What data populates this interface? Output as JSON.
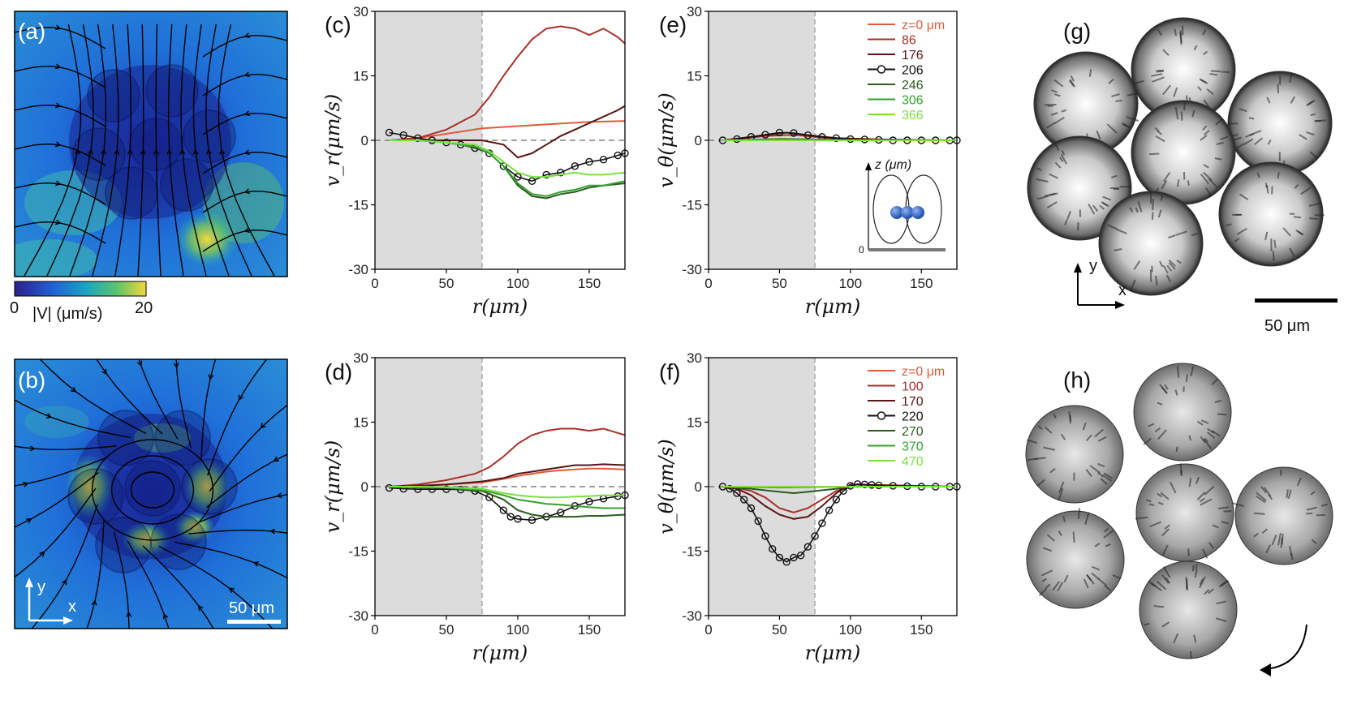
{
  "panel_labels": {
    "a": "(a)",
    "b": "(b)",
    "c": "(c)",
    "d": "(d)",
    "e": "(e)",
    "f": "(f)",
    "g": "(g)",
    "h": "(h)"
  },
  "colorbar": {
    "min": "0",
    "max": "20",
    "label": "|V| (μm/s)",
    "colors": [
      "#2e1f8c",
      "#1f63d8",
      "#18a6c0",
      "#5ec46a",
      "#f3d83a"
    ]
  },
  "scalebars": {
    "b": "50 μm",
    "g": "50 μm"
  },
  "axes_glyphs": {
    "x": "x",
    "y": "y"
  },
  "inset": {
    "label": "z (μm)",
    "zero": "0"
  },
  "chart_data": [
    {
      "id": "c",
      "type": "line",
      "xlabel": "r(μm)",
      "ylabel": "v_r(μm/s)",
      "xlim": [
        0,
        175
      ],
      "ylim": [
        -30,
        30
      ],
      "xticks": [
        "0",
        "50",
        "100",
        "150"
      ],
      "yticks": [
        "30",
        "15",
        "0",
        "-15",
        "-30"
      ],
      "shade_until": 75,
      "series": [
        {
          "name": "z=0 μm",
          "color": "#e25a3a",
          "marker": false,
          "x": [
            10,
            30,
            50,
            75,
            100,
            125,
            150,
            175
          ],
          "y": [
            0,
            0.5,
            1.5,
            2.8,
            3.3,
            3.8,
            4.3,
            4.5
          ]
        },
        {
          "name": "86",
          "color": "#a8302a",
          "marker": false,
          "x": [
            10,
            30,
            50,
            70,
            80,
            90,
            100,
            110,
            120,
            130,
            140,
            150,
            160,
            170,
            175
          ],
          "y": [
            0,
            0.5,
            2.5,
            6,
            10,
            15,
            19.5,
            23.5,
            26,
            26.5,
            26,
            24.5,
            26,
            24,
            22.5
          ]
        },
        {
          "name": "176",
          "color": "#5a1414",
          "marker": false,
          "x": [
            10,
            30,
            50,
            75,
            90,
            100,
            110,
            120,
            130,
            140,
            150,
            160,
            170,
            175
          ],
          "y": [
            0,
            0,
            0,
            0,
            -1,
            -4,
            -3,
            -1,
            1,
            2.5,
            4,
            5.5,
            7,
            8
          ]
        },
        {
          "name": "206",
          "color": "#111111",
          "marker": true,
          "x": [
            10,
            20,
            30,
            40,
            50,
            60,
            70,
            80,
            90,
            100,
            110,
            120,
            130,
            140,
            150,
            160,
            170,
            175
          ],
          "y": [
            1.8,
            1.2,
            0.5,
            0,
            -0.5,
            -1,
            -1.8,
            -3,
            -6,
            -8.5,
            -9.5,
            -8,
            -7.5,
            -6,
            -5,
            -4.5,
            -3.5,
            -3
          ]
        },
        {
          "name": "246",
          "color": "#2d5a1f",
          "marker": false,
          "x": [
            10,
            30,
            50,
            70,
            80,
            90,
            100,
            110,
            120,
            130,
            140,
            150,
            160,
            175
          ],
          "y": [
            0,
            0,
            -0.5,
            -1.5,
            -3,
            -6,
            -10.5,
            -13,
            -13.5,
            -12.5,
            -12,
            -11,
            -10.5,
            -10
          ]
        },
        {
          "name": "306",
          "color": "#36a02e",
          "marker": false,
          "x": [
            10,
            30,
            50,
            70,
            80,
            90,
            100,
            110,
            120,
            130,
            140,
            150,
            160,
            175
          ],
          "y": [
            0,
            0,
            -0.5,
            -1.5,
            -3,
            -6,
            -10,
            -12.5,
            -13,
            -12,
            -11.5,
            -10.5,
            -10.5,
            -9.5
          ]
        },
        {
          "name": "366",
          "color": "#7ae043",
          "marker": false,
          "x": [
            10,
            30,
            50,
            70,
            80,
            90,
            100,
            110,
            120,
            130,
            140,
            150,
            160,
            175
          ],
          "y": [
            0,
            0,
            -0.5,
            -1,
            -2.5,
            -5,
            -7.5,
            -8.5,
            -8.5,
            -8,
            -7.5,
            -8,
            -8,
            -7.5
          ]
        }
      ]
    },
    {
      "id": "d",
      "type": "line",
      "xlabel": "r(μm)",
      "ylabel": "v_r(μm/s)",
      "xlim": [
        0,
        175
      ],
      "ylim": [
        -30,
        30
      ],
      "xticks": [
        "0",
        "50",
        "100",
        "150"
      ],
      "yticks": [
        "30",
        "15",
        "0",
        "-15",
        "-30"
      ],
      "shade_until": 75,
      "series": [
        {
          "name": "z=0 μm",
          "color": "#e25a3a",
          "marker": false,
          "x": [
            10,
            30,
            50,
            75,
            90,
            100,
            110,
            120,
            130,
            140,
            150,
            160,
            175
          ],
          "y": [
            0,
            0.2,
            0.5,
            1,
            1.8,
            2.5,
            3,
            3.5,
            3.8,
            4,
            4.2,
            4.2,
            4
          ]
        },
        {
          "name": "100",
          "color": "#a8302a",
          "marker": false,
          "x": [
            10,
            30,
            50,
            70,
            80,
            90,
            100,
            110,
            120,
            130,
            140,
            150,
            160,
            170,
            175
          ],
          "y": [
            0,
            0.5,
            1.5,
            3,
            4.5,
            7,
            10,
            12,
            13,
            13.5,
            13.5,
            13,
            13.5,
            12.5,
            12
          ]
        },
        {
          "name": "170",
          "color": "#5a1414",
          "marker": false,
          "x": [
            10,
            30,
            50,
            75,
            90,
            100,
            110,
            120,
            130,
            140,
            150,
            160,
            175
          ],
          "y": [
            0,
            0.2,
            0.5,
            1.2,
            2,
            3,
            3.5,
            4,
            4.5,
            5,
            5,
            5.2,
            5
          ]
        },
        {
          "name": "220",
          "color": "#111111",
          "marker": true,
          "x": [
            10,
            20,
            30,
            40,
            50,
            60,
            70,
            80,
            90,
            95,
            100,
            110,
            120,
            130,
            140,
            150,
            160,
            170,
            175
          ],
          "y": [
            -0.3,
            -0.5,
            -0.6,
            -0.6,
            -0.6,
            -0.7,
            -1,
            -2.5,
            -5.5,
            -7,
            -7.5,
            -7.8,
            -7,
            -6,
            -4.5,
            -3.5,
            -2.8,
            -2.2,
            -2
          ]
        },
        {
          "name": "270",
          "color": "#2d5a1f",
          "marker": false,
          "x": [
            10,
            30,
            50,
            75,
            90,
            100,
            110,
            120,
            130,
            140,
            150,
            160,
            175
          ],
          "y": [
            0,
            -0.2,
            -0.3,
            -1,
            -3,
            -5.5,
            -6.5,
            -7,
            -7,
            -7,
            -6.8,
            -6.8,
            -6.5
          ]
        },
        {
          "name": "370",
          "color": "#36a02e",
          "marker": false,
          "x": [
            10,
            30,
            50,
            75,
            90,
            100,
            110,
            120,
            130,
            140,
            150,
            160,
            175
          ],
          "y": [
            0,
            -0.1,
            -0.2,
            -0.8,
            -2,
            -3,
            -3.5,
            -4,
            -4.2,
            -4.5,
            -4.8,
            -5,
            -5
          ]
        },
        {
          "name": "470",
          "color": "#7ae043",
          "marker": false,
          "x": [
            10,
            30,
            50,
            75,
            90,
            100,
            110,
            120,
            130,
            140,
            150,
            160,
            175
          ],
          "y": [
            0,
            0,
            -0.1,
            -0.5,
            -1.5,
            -2,
            -2.3,
            -2.5,
            -2.5,
            -2.3,
            -2.2,
            -2,
            -2
          ]
        }
      ]
    },
    {
      "id": "e",
      "type": "line",
      "xlabel": "r(μm)",
      "ylabel": "v_θ(μm/s)",
      "xlim": [
        0,
        175
      ],
      "ylim": [
        -30,
        30
      ],
      "xticks": [
        "0",
        "50",
        "100",
        "150"
      ],
      "yticks": [
        "30",
        "15",
        "0",
        "-15",
        "-30"
      ],
      "shade_until": 75,
      "legend": [
        "z=0 μm",
        "86",
        "176",
        "206",
        "246",
        "306",
        "366"
      ],
      "series": [
        {
          "name": "z=0 μm",
          "color": "#e25a3a",
          "marker": false,
          "x": [
            10,
            50,
            100,
            175
          ],
          "y": [
            0,
            0,
            0,
            0
          ]
        },
        {
          "name": "86",
          "color": "#a8302a",
          "marker": false,
          "x": [
            10,
            40,
            60,
            80,
            100,
            175
          ],
          "y": [
            0,
            1,
            1.3,
            0.6,
            0.2,
            0
          ]
        },
        {
          "name": "176",
          "color": "#5a1414",
          "marker": false,
          "x": [
            10,
            40,
            55,
            70,
            90,
            120,
            175
          ],
          "y": [
            0,
            1.2,
            1.8,
            1.2,
            0.5,
            0.2,
            0
          ]
        },
        {
          "name": "206",
          "color": "#111111",
          "marker": true,
          "x": [
            10,
            20,
            30,
            40,
            50,
            60,
            70,
            80,
            90,
            100,
            110,
            120,
            130,
            140,
            150,
            160,
            170,
            175
          ],
          "y": [
            0,
            0.3,
            0.8,
            1.3,
            1.8,
            1.7,
            1.2,
            0.8,
            0.5,
            0.3,
            0.2,
            0.1,
            0,
            0,
            0,
            0,
            0,
            0
          ]
        },
        {
          "name": "246",
          "color": "#2d5a1f",
          "marker": false,
          "x": [
            10,
            50,
            100,
            175
          ],
          "y": [
            0,
            0.3,
            0.1,
            0
          ]
        },
        {
          "name": "306",
          "color": "#36a02e",
          "marker": false,
          "x": [
            10,
            50,
            100,
            175
          ],
          "y": [
            0,
            0.1,
            0,
            0
          ]
        },
        {
          "name": "366",
          "color": "#7ae043",
          "marker": false,
          "x": [
            10,
            50,
            100,
            175
          ],
          "y": [
            0,
            0,
            0,
            0
          ]
        }
      ]
    },
    {
      "id": "f",
      "type": "line",
      "xlabel": "r(μm)",
      "ylabel": "v_θ(μm/s)",
      "xlim": [
        0,
        175
      ],
      "ylim": [
        -30,
        30
      ],
      "xticks": [
        "0",
        "50",
        "100",
        "150"
      ],
      "yticks": [
        "30",
        "15",
        "0",
        "-15",
        "-30"
      ],
      "shade_until": 75,
      "legend": [
        "z=0 μm",
        "100",
        "170",
        "220",
        "270",
        "370",
        "470"
      ],
      "series": [
        {
          "name": "z=0 μm",
          "color": "#e25a3a",
          "marker": false,
          "x": [
            10,
            50,
            100,
            175
          ],
          "y": [
            0,
            0,
            0,
            0
          ]
        },
        {
          "name": "100",
          "color": "#a8302a",
          "marker": false,
          "x": [
            10,
            20,
            30,
            40,
            50,
            60,
            70,
            80,
            90,
            100,
            175
          ],
          "y": [
            0,
            -0.3,
            -1,
            -2.5,
            -5,
            -6,
            -5,
            -3,
            -1,
            0,
            0
          ]
        },
        {
          "name": "170",
          "color": "#5a1414",
          "marker": false,
          "x": [
            10,
            20,
            30,
            40,
            50,
            60,
            70,
            80,
            90,
            100,
            175
          ],
          "y": [
            0,
            -0.5,
            -2,
            -4.5,
            -6.5,
            -7.5,
            -7,
            -4.5,
            -1.5,
            0.5,
            0
          ]
        },
        {
          "name": "220",
          "color": "#111111",
          "marker": true,
          "x": [
            10,
            15,
            20,
            25,
            30,
            35,
            40,
            45,
            50,
            55,
            60,
            65,
            70,
            75,
            80,
            85,
            90,
            95,
            100,
            105,
            110,
            115,
            120,
            130,
            140,
            150,
            160,
            170,
            175
          ],
          "y": [
            0,
            -0.5,
            -1.5,
            -3,
            -5,
            -8,
            -11.5,
            -14.5,
            -16.5,
            -17.5,
            -16.5,
            -16,
            -14,
            -11.5,
            -8.5,
            -5.5,
            -3,
            -1,
            0.2,
            0.6,
            0.5,
            0.4,
            0.3,
            0.2,
            0.1,
            0,
            0,
            0,
            0
          ]
        },
        {
          "name": "270",
          "color": "#2d5a1f",
          "marker": false,
          "x": [
            10,
            30,
            50,
            60,
            70,
            90,
            100,
            175
          ],
          "y": [
            0,
            -0.5,
            -1.2,
            -1.5,
            -1.2,
            -0.5,
            0,
            0
          ]
        },
        {
          "name": "370",
          "color": "#36a02e",
          "marker": false,
          "x": [
            10,
            50,
            100,
            175
          ],
          "y": [
            0,
            -0.2,
            0,
            0
          ]
        },
        {
          "name": "470",
          "color": "#7ae043",
          "marker": false,
          "x": [
            10,
            50,
            100,
            175
          ],
          "y": [
            0,
            0,
            0,
            0
          ]
        }
      ]
    }
  ]
}
